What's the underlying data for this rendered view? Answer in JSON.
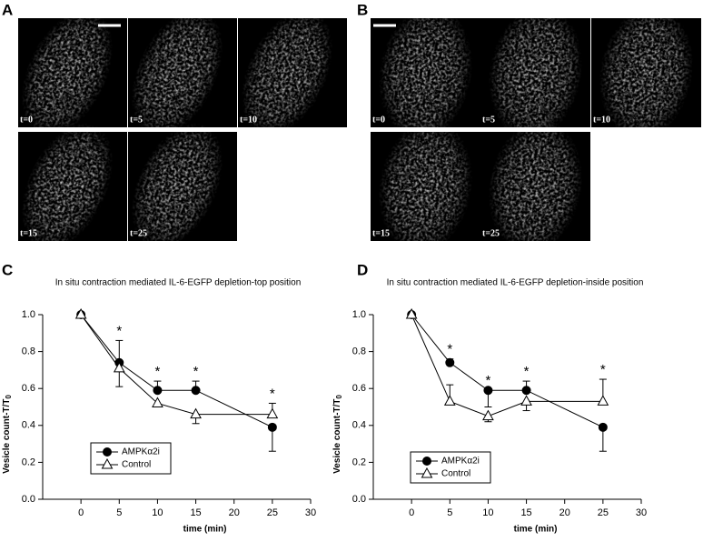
{
  "image_panels": [
    {
      "letter": "A",
      "frames": [
        "t=0",
        "t=5",
        "t=10",
        "t=15",
        "t=25"
      ]
    },
    {
      "letter": "B",
      "frames": [
        "t=0",
        "t=5",
        "t=10",
        "t=15",
        "t=25"
      ]
    }
  ],
  "chart_data": [
    {
      "panel": "C",
      "type": "line",
      "title": "In situ contraction mediated IL-6-EGFP depletion-top position",
      "x_label": "time (min)",
      "y_label": "Vesicle count-T/T",
      "y_label_subscript": "0",
      "x": [
        0,
        5,
        10,
        15,
        25
      ],
      "xlim": [
        -5,
        30
      ],
      "xticks": [
        0,
        5,
        10,
        15,
        20,
        25,
        30
      ],
      "ylim": [
        0,
        1
      ],
      "yticks": [
        {
          "value": 0,
          "label": "0.0"
        },
        {
          "value": 0.2,
          "label": "0.2"
        },
        {
          "value": 0.4,
          "label": "0.4"
        },
        {
          "value": 0.6,
          "label": "0.6"
        },
        {
          "value": 0.8,
          "label": "0.8"
        },
        {
          "value": 1,
          "label": "1.0"
        }
      ],
      "legend": "lower left",
      "series": [
        {
          "name": "AMPKα2i",
          "color": "#000000",
          "marker": "circle",
          "values": [
            1.0,
            0.74,
            0.59,
            0.59,
            0.39
          ],
          "errors": [
            0,
            0.12,
            0.05,
            0.05,
            0.13
          ],
          "error_sides": [
            "up",
            "up",
            "up",
            "up",
            "down"
          ]
        },
        {
          "name": "Control",
          "color": "#000000",
          "marker": "triangle",
          "values": [
            1.0,
            0.71,
            0.52,
            0.46,
            0.46
          ],
          "errors": [
            0,
            0.1,
            0.02,
            0.05,
            0.06
          ],
          "error_sides": [
            "down",
            "down",
            "down",
            "down",
            "up"
          ]
        }
      ],
      "annotations": [
        {
          "x": 5,
          "text": "*"
        },
        {
          "x": 10,
          "text": "*"
        },
        {
          "x": 15,
          "text": "*"
        },
        {
          "x": 25,
          "text": "*"
        }
      ]
    },
    {
      "panel": "D",
      "type": "line",
      "title": "In situ contraction mediated IL-6-EGFP depletion-inside position",
      "x_label": "time (min)",
      "y_label": "Vesicle count-T/T",
      "y_label_subscript": "0",
      "x": [
        0,
        5,
        10,
        15,
        25
      ],
      "xlim": [
        -5,
        30
      ],
      "xticks": [
        0,
        5,
        10,
        15,
        20,
        25,
        30
      ],
      "ylim": [
        0,
        1
      ],
      "yticks": [
        {
          "value": 0,
          "label": "0.0"
        },
        {
          "value": 0.2,
          "label": "0.2"
        },
        {
          "value": 0.4,
          "label": "0.4"
        },
        {
          "value": 0.6,
          "label": "0.6"
        },
        {
          "value": 0.8,
          "label": "0.8"
        },
        {
          "value": 1,
          "label": "1.0"
        }
      ],
      "legend": "lower left",
      "series": [
        {
          "name": "AMPKα2i",
          "color": "#000000",
          "marker": "circle",
          "values": [
            1.0,
            0.74,
            0.59,
            0.59,
            0.39
          ],
          "errors": [
            0,
            0.02,
            0.09,
            0.05,
            0.13
          ],
          "error_sides": [
            "up",
            "up",
            "down",
            "up",
            "down"
          ]
        },
        {
          "name": "Control",
          "color": "#000000",
          "marker": "triangle",
          "values": [
            1.0,
            0.53,
            0.45,
            0.53,
            0.53
          ],
          "errors": [
            0,
            0.09,
            0.03,
            0.05,
            0.12
          ],
          "error_sides": [
            "down",
            "up",
            "down",
            "down",
            "up"
          ]
        }
      ],
      "annotations": [
        {
          "x": 5,
          "text": "*"
        },
        {
          "x": 10,
          "text": "*"
        },
        {
          "x": 15,
          "text": "*"
        },
        {
          "x": 25,
          "text": "*"
        }
      ]
    }
  ]
}
